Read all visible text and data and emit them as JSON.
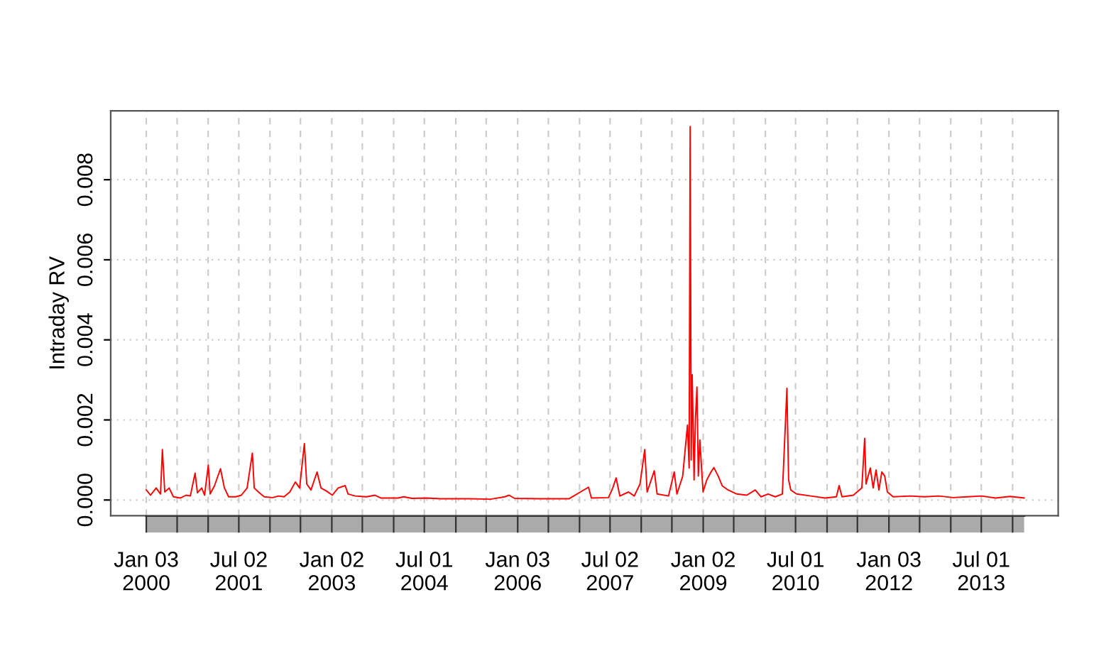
{
  "chart_data": {
    "type": "line",
    "ylabel": "Intraday RV",
    "ylim": [
      -0.00039,
      0.00972
    ],
    "yticks": [
      {
        "value": 0,
        "label": "0.000"
      },
      {
        "value": 0.002,
        "label": "0.002"
      },
      {
        "value": 0.004,
        "label": "0.004"
      },
      {
        "value": 0.006,
        "label": "0.006"
      },
      {
        "value": 0.008,
        "label": "0.008"
      }
    ],
    "xlim": [
      "1999-06-07",
      "2014-09-28"
    ],
    "xticks": [
      {
        "value": "2000-01-03",
        "label": "Jan 03\n2000"
      },
      {
        "value": "2000-07-03",
        "label": null
      },
      {
        "value": "2001-01-02",
        "label": null
      },
      {
        "value": "2001-07-02",
        "label": "Jul 02\n2001"
      },
      {
        "value": "2002-01-02",
        "label": null
      },
      {
        "value": "2002-07-01",
        "label": null
      },
      {
        "value": "2003-01-02",
        "label": "Jan 02\n2003"
      },
      {
        "value": "2003-07-01",
        "label": null
      },
      {
        "value": "2004-01-02",
        "label": null
      },
      {
        "value": "2004-07-01",
        "label": "Jul 01\n2004"
      },
      {
        "value": "2005-01-03",
        "label": null
      },
      {
        "value": "2005-07-01",
        "label": null
      },
      {
        "value": "2006-01-03",
        "label": "Jan 03\n2006"
      },
      {
        "value": "2006-07-03",
        "label": null
      },
      {
        "value": "2007-01-03",
        "label": null
      },
      {
        "value": "2007-07-02",
        "label": "Jul 02\n2007"
      },
      {
        "value": "2008-01-02",
        "label": null
      },
      {
        "value": "2008-07-01",
        "label": null
      },
      {
        "value": "2009-01-02",
        "label": "Jan 02\n2009"
      },
      {
        "value": "2009-07-01",
        "label": null
      },
      {
        "value": "2010-01-04",
        "label": null
      },
      {
        "value": "2010-07-01",
        "label": "Jul 01\n2010"
      },
      {
        "value": "2011-01-03",
        "label": null
      },
      {
        "value": "2011-07-01",
        "label": null
      },
      {
        "value": "2012-01-03",
        "label": "Jan 03\n2012"
      },
      {
        "value": "2012-07-02",
        "label": null
      },
      {
        "value": "2013-01-02",
        "label": null
      },
      {
        "value": "2013-07-01",
        "label": "Jul 01\n2013"
      },
      {
        "value": "2014-01-02",
        "label": null
      }
    ],
    "grid": true,
    "line_style": "solid",
    "marker": "none",
    "x": [
      "2000-01-03",
      "2000-01-28",
      "2000-03-01",
      "2000-03-27",
      "2000-04-07",
      "2000-04-21",
      "2000-05-17",
      "2000-06-11",
      "2000-07-23",
      "2000-08-25",
      "2000-09-19",
      "2000-10-17",
      "2000-10-31",
      "2000-11-25",
      "2000-12-12",
      "2001-01-03",
      "2001-01-14",
      "2001-02-08",
      "2001-03-16",
      "2001-04-08",
      "2001-05-03",
      "2001-06-14",
      "2001-07-17",
      "2001-08-20",
      "2001-09-20",
      "2001-10-01",
      "2001-10-26",
      "2001-11-29",
      "2002-01-18",
      "2002-02-21",
      "2002-03-26",
      "2002-04-29",
      "2002-06-01",
      "2002-06-26",
      "2002-07-24",
      "2002-08-07",
      "2002-09-01",
      "2002-10-07",
      "2002-10-30",
      "2002-12-03",
      "2003-01-05",
      "2003-02-08",
      "2003-03-22",
      "2003-04-08",
      "2003-05-20",
      "2003-07-26",
      "2003-09-14",
      "2003-10-18",
      "2004-01-27",
      "2004-03-01",
      "2004-04-20",
      "2004-07-13",
      "2004-10-05",
      "2005-03-23",
      "2005-07-27",
      "2005-10-19",
      "2005-11-13",
      "2005-12-16",
      "2006-05-17",
      "2006-11-01",
      "2007-02-25",
      "2007-03-14",
      "2007-06-23",
      "2007-07-18",
      "2007-08-07",
      "2007-08-29",
      "2007-10-19",
      "2007-11-22",
      "2007-12-26",
      "2008-01-23",
      "2008-02-06",
      "2008-03-19",
      "2008-04-05",
      "2008-06-11",
      "2008-07-15",
      "2008-07-31",
      "2008-09-03",
      "2008-10-01",
      "2008-10-11",
      "2008-10-17",
      "2008-10-23",
      "2008-10-29",
      "2008-11-09",
      "2008-11-17",
      "2008-11-26",
      "2008-12-04",
      "2008-12-13",
      "2009-01-01",
      "2009-01-23",
      "2009-02-17",
      "2009-03-06",
      "2009-03-31",
      "2009-04-25",
      "2009-05-29",
      "2009-07-19",
      "2009-09-16",
      "2009-11-05",
      "2009-12-09",
      "2010-01-20",
      "2010-03-03",
      "2010-04-14",
      "2010-05-11",
      "2010-05-21",
      "2010-06-03",
      "2010-07-07",
      "2010-09-29",
      "2010-12-22",
      "2011-02-27",
      "2011-03-15",
      "2011-04-01",
      "2011-06-07",
      "2011-07-27",
      "2011-08-13",
      "2011-08-21",
      "2011-09-15",
      "2011-10-02",
      "2011-10-19",
      "2011-11-05",
      "2011-11-22",
      "2011-12-09",
      "2011-12-25",
      "2012-01-28",
      "2012-05-08",
      "2012-07-31",
      "2012-10-23",
      "2013-01-16",
      "2013-04-10",
      "2013-07-02",
      "2013-09-24",
      "2013-12-17",
      "2014-03-11"
    ],
    "series": [
      {
        "color": "#ff0000",
        "values": [
          0.00025,
          0.00012,
          0.0003,
          0.00015,
          0.00126,
          0.0002,
          0.0003,
          8e-05,
          5e-05,
          0.00012,
          0.0001,
          0.00067,
          0.00018,
          0.0003,
          0.00012,
          0.00087,
          0.00015,
          0.00035,
          0.00078,
          0.0003,
          8e-05,
          8e-05,
          0.00012,
          0.0003,
          0.00117,
          0.0003,
          0.0002,
          8e-05,
          6e-05,
          0.0001,
          8e-05,
          0.0002,
          0.00045,
          0.0003,
          0.00141,
          0.0004,
          0.00025,
          0.0007,
          0.0003,
          0.00022,
          0.00012,
          0.0003,
          0.00036,
          0.00015,
          0.0001,
          8e-05,
          0.00012,
          5e-05,
          5e-05,
          8e-05,
          4e-05,
          5e-05,
          3e-05,
          3e-05,
          2e-05,
          8e-05,
          0.00012,
          4e-05,
          3e-05,
          3e-05,
          0.00032,
          5e-05,
          6e-05,
          0.0003,
          0.00055,
          0.0001,
          0.0002,
          0.0001,
          0.0004,
          0.00126,
          0.0002,
          0.00073,
          0.00015,
          0.0001,
          0.0007,
          0.00015,
          0.0006,
          0.00187,
          0.0008,
          0.00933,
          0.001,
          0.00313,
          0.0005,
          0.002,
          0.00282,
          0.0006,
          0.0015,
          0.0002,
          0.0005,
          0.0007,
          0.00081,
          0.0006,
          0.00035,
          0.00025,
          0.00015,
          0.00012,
          0.00025,
          8e-05,
          0.00015,
          8e-05,
          0.00015,
          0.00279,
          0.0005,
          0.00025,
          0.00015,
          0.0001,
          5e-05,
          8e-05,
          0.00036,
          8e-05,
          0.00012,
          0.0003,
          0.00154,
          0.0004,
          0.0008,
          0.0003,
          0.00075,
          0.00025,
          0.0007,
          0.0006,
          0.0002,
          8e-05,
          0.0001,
          8e-05,
          0.0001,
          6e-05,
          8e-05,
          0.0001,
          5e-05,
          9e-05,
          5e-05
        ]
      }
    ]
  }
}
